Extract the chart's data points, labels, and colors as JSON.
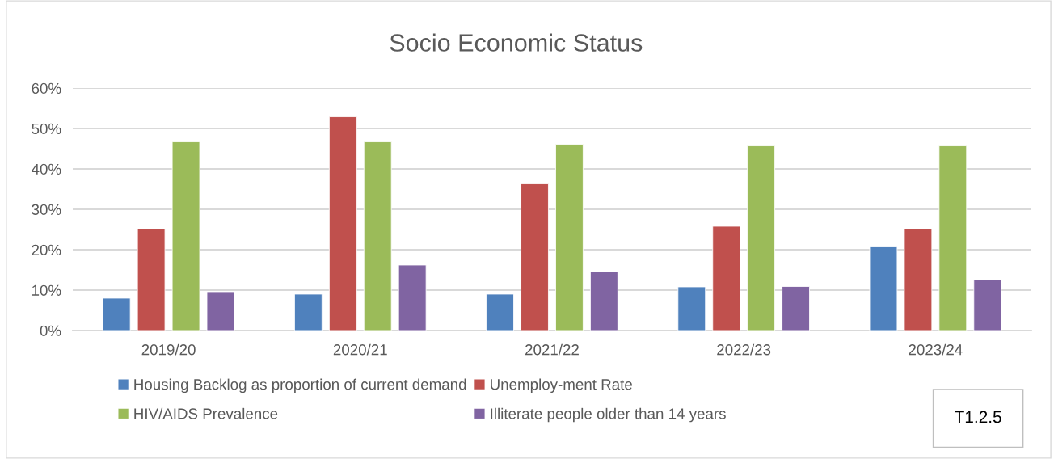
{
  "chart_data": {
    "type": "bar",
    "title": "Socio Economic Status",
    "categories": [
      "2019/20",
      "2020/21",
      "2021/22",
      "2022/23",
      "2023/24"
    ],
    "series": [
      {
        "name": "Housing Backlog as proportion of current demand",
        "color": "#4f81bd",
        "values": [
          8.0,
          9.0,
          9.0,
          10.8,
          20.7
        ]
      },
      {
        "name": "Unemploy-ment Rate",
        "color": "#c0504d",
        "values": [
          25.1,
          52.9,
          36.3,
          25.8,
          25.1
        ]
      },
      {
        "name": "HIV/AIDS Prevalence",
        "color": "#9bbb59",
        "values": [
          46.7,
          46.7,
          46.1,
          45.7,
          45.7
        ]
      },
      {
        "name": "Illiterate people older than 14 years",
        "color": "#8064a2",
        "values": [
          9.6,
          16.2,
          14.5,
          10.9,
          12.5
        ]
      }
    ],
    "ylim": [
      0,
      60
    ],
    "yticks": [
      {
        "value": 0,
        "label": "0%"
      },
      {
        "value": 10,
        "label": "10%"
      },
      {
        "value": 20,
        "label": "20%"
      },
      {
        "value": 30,
        "label": "30%"
      },
      {
        "value": 40,
        "label": "40%"
      },
      {
        "value": 50,
        "label": "50%"
      },
      {
        "value": 60,
        "label": "60%"
      }
    ],
    "grid": "y",
    "legend": "bottom",
    "annotations": [
      "T1.2.5"
    ]
  }
}
